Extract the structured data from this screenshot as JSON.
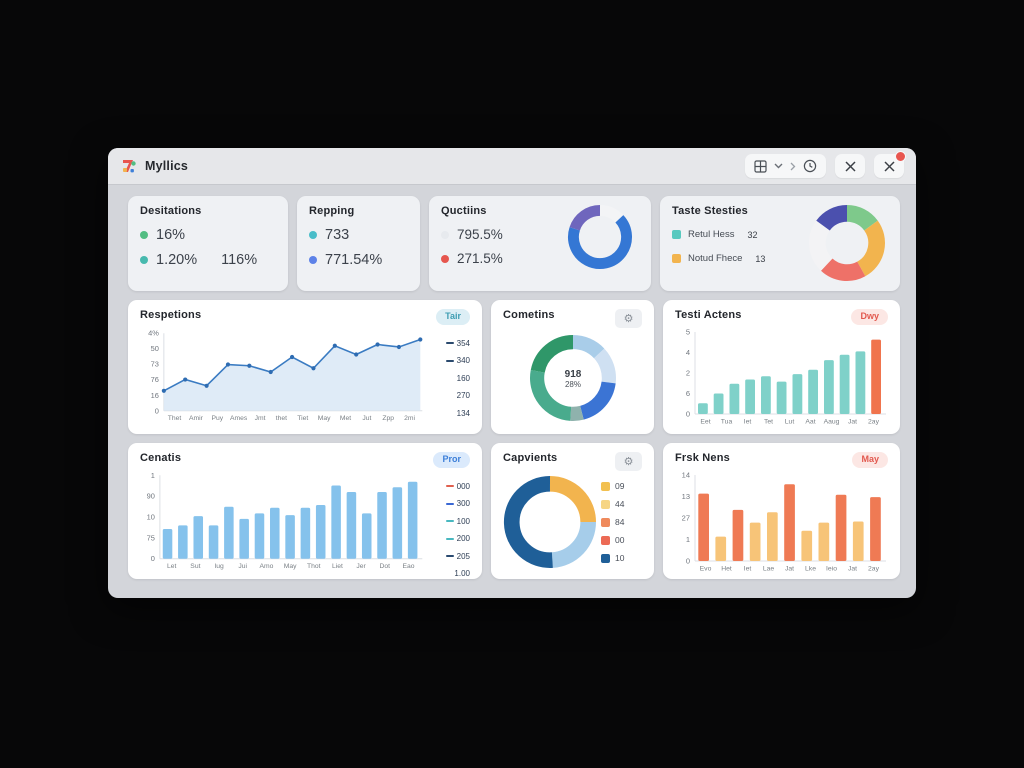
{
  "titlebar": {
    "title": "Myllics",
    "icons": [
      "apps-grid",
      "chevron-down",
      "chevron-right",
      "clock",
      "close",
      "close-with-notification"
    ]
  },
  "colors": {
    "window_bg": "#d3d5da",
    "card_bg": "#ffffff",
    "card_bg_row1": "#eff1f4",
    "accent_blue": "#3477d4",
    "accent_teal": "#7fd1c9",
    "accent_lightblue": "#85c2ec",
    "accent_orange": "#f2b44e",
    "accent_red": "#e6564e",
    "notification_red": "#e8554f"
  },
  "cards": {
    "desitations": {
      "title": "Desitations",
      "stats": [
        {
          "dot": "#52bd82",
          "value": "16%",
          "extra": ""
        },
        {
          "dot": "#47b9ae",
          "value": "1.20%",
          "extra": "116%"
        }
      ]
    },
    "repping": {
      "title": "Repping",
      "stats": [
        {
          "dot": "#49bdc9",
          "value": "733"
        },
        {
          "dot": "#5d82e8",
          "value": "771.54%"
        }
      ]
    },
    "quctiins": {
      "title": "Quctiins",
      "stats": [
        {
          "dot": "#e7eaee",
          "value": "795.5%"
        },
        {
          "dot": "#e6564e",
          "value": "271.5%"
        }
      ]
    },
    "taste": {
      "title": "Taste Stesties",
      "legend": [
        {
          "swatch": "#58c9bf",
          "label": "Retul Hess",
          "value": "32"
        },
        {
          "swatch": "#f2b44e",
          "label": "Notud Fhece",
          "value": "13"
        }
      ]
    },
    "respetions": {
      "title": "Respetions",
      "badge": "Tair",
      "side": [
        {
          "dash": "#2b4a6e",
          "label": "354"
        },
        {
          "dash": "#2b4a6e",
          "label": "340"
        },
        {
          "label": "160"
        },
        {
          "label": "270"
        },
        {
          "label": "134"
        }
      ]
    },
    "cometins": {
      "title": "Cometins",
      "gear": "⚙"
    },
    "testi": {
      "title": "Testi Actens",
      "badge": "Dwy"
    },
    "cenatis": {
      "title": "Cenatis",
      "badge": "Pror",
      "side": [
        {
          "dash": "#e0604f",
          "label": "000"
        },
        {
          "dash": "#3a68d4",
          "label": "300"
        },
        {
          "dash": "#49b8c0",
          "label": "100"
        },
        {
          "dash": "#49b8c0",
          "label": "200"
        },
        {
          "dash": "#2a4a70",
          "label": "205"
        },
        {
          "label": "1.00"
        }
      ]
    },
    "capvients": {
      "title": "Capvients",
      "gear": "⚙",
      "legend": [
        {
          "swatch": "#f2c050",
          "label": "09"
        },
        {
          "swatch": "#f6d584",
          "label": "44"
        },
        {
          "swatch": "#ef8a5c",
          "label": "84"
        },
        {
          "swatch": "#ec6a55",
          "label": "00"
        },
        {
          "swatch": "#1f5f98",
          "label": "10"
        }
      ]
    },
    "frsk": {
      "title": "Frsk Nens",
      "badge": "May"
    }
  },
  "chart_data": [
    {
      "id": "quctiins-donut",
      "type": "pie",
      "hole": 0.66,
      "segments": [
        {
          "label": "gap",
          "value": 13,
          "color": "#f3f4f6"
        },
        {
          "label": "primary",
          "value": 67,
          "color": "#3477d4"
        },
        {
          "label": "secondary",
          "value": 20,
          "color": "#6f66bd"
        }
      ]
    },
    {
      "id": "taste-donut",
      "type": "pie",
      "hole": 0.56,
      "segments": [
        {
          "label": "green",
          "value": 15,
          "color": "#7ec98b"
        },
        {
          "label": "orange",
          "value": 27,
          "color": "#f2b44e"
        },
        {
          "label": "red",
          "value": 20,
          "color": "#ee7168"
        },
        {
          "label": "white",
          "value": 23,
          "color": "#f3f3f5"
        },
        {
          "label": "indigo",
          "value": 15,
          "color": "#4b50ae"
        }
      ]
    },
    {
      "id": "respetions-line",
      "type": "line",
      "values": [
        16,
        25,
        20,
        37,
        36,
        31,
        43,
        34,
        52,
        45,
        53,
        51,
        57
      ],
      "ylim": [
        0,
        62
      ],
      "yticks": [
        "4%",
        "50",
        "73",
        "76",
        "16",
        "0"
      ],
      "xlabels": [
        "Thet",
        "Amir",
        "Puy",
        "Ames",
        "Jmt",
        "thet",
        "Tiet",
        "May",
        "Met",
        "Jut",
        "Zpp",
        "2mi"
      ],
      "line_color": "#3a7bc2",
      "dot_color": "#2e6cb2",
      "fill_color": "#d9e8f6"
    },
    {
      "id": "testi-bars",
      "type": "bar",
      "values": [
        1.0,
        1.9,
        2.8,
        3.2,
        3.5,
        3.0,
        3.7,
        4.1,
        5.0,
        5.5,
        5.8,
        6.9
      ],
      "colors": [
        "#7fd1c9",
        "#7fd1c9",
        "#7fd1c9",
        "#7fd1c9",
        "#7fd1c9",
        "#7fd1c9",
        "#7fd1c9",
        "#7fd1c9",
        "#7fd1c9",
        "#7fd1c9",
        "#7fd1c9",
        "#f0744d"
      ],
      "ylim": [
        0,
        7.6
      ],
      "yticks": [
        "5",
        "4",
        "2",
        "6",
        "0"
      ],
      "xlabels": [
        "Eet",
        "Tua",
        "Iet",
        "Tet",
        "Lut",
        "Aat",
        "Aaug",
        "Jat",
        "2ay"
      ]
    },
    {
      "id": "cenatis-bars",
      "type": "bar",
      "values": [
        3.2,
        3.6,
        4.6,
        3.6,
        5.6,
        4.3,
        4.9,
        5.5,
        4.7,
        5.5,
        5.8,
        7.9,
        7.2,
        4.9,
        7.2,
        7.7,
        8.3
      ],
      "color": "#85c2ec",
      "ylim": [
        0,
        9
      ],
      "yticks": [
        "1",
        "90",
        "10",
        "75",
        "0"
      ],
      "xlabels": [
        "Let",
        "Sut",
        "Iug",
        "Jui",
        "Amo",
        "May",
        "Thot",
        "Liet",
        "Jer",
        "Dot",
        "Eao"
      ]
    },
    {
      "id": "cometins-donut",
      "type": "pie",
      "hole": 0.67,
      "center": {
        "value": "918",
        "sub": "28%"
      },
      "segments": [
        {
          "label": "lightblue",
          "value": 13,
          "color": "#a9cde9"
        },
        {
          "label": "paleblue",
          "value": 14,
          "color": "#cfe0f2"
        },
        {
          "label": "blue",
          "value": 19,
          "color": "#3b74d4"
        },
        {
          "label": "slate",
          "value": 5,
          "color": "#8fb2ad"
        },
        {
          "label": "green",
          "value": 27,
          "color": "#49ab8d"
        },
        {
          "label": "darkgreen",
          "value": 22,
          "color": "#2f9769"
        }
      ]
    },
    {
      "id": "capvients-donut",
      "type": "pie",
      "hole": 0.66,
      "segments": [
        {
          "label": "orange",
          "value": 25,
          "color": "#f2b44e"
        },
        {
          "label": "lightblue",
          "value": 24,
          "color": "#a6cdea"
        },
        {
          "label": "darkblue",
          "value": 51,
          "color": "#1f5f98"
        }
      ]
    },
    {
      "id": "frsk-bars",
      "type": "bar",
      "values": [
        2.9,
        1.05,
        2.2,
        1.65,
        2.1,
        3.3,
        1.3,
        1.65,
        2.85,
        1.7,
        2.75
      ],
      "colors": [
        "#ef7a54",
        "#f7c478",
        "#ef7a54",
        "#f7c478",
        "#f7c478",
        "#ef7a54",
        "#f7c478",
        "#f7c478",
        "#ef7a54",
        "#f7c478",
        "#ef7a54"
      ],
      "ylim": [
        0,
        3.7
      ],
      "yticks": [
        "14",
        "13",
        "27",
        "1",
        "0"
      ],
      "xlabels": [
        "Evo",
        "Het",
        "Iet",
        "Lae",
        "Jat",
        "Lke",
        "Ieio",
        "Jat",
        "2ay"
      ]
    }
  ]
}
